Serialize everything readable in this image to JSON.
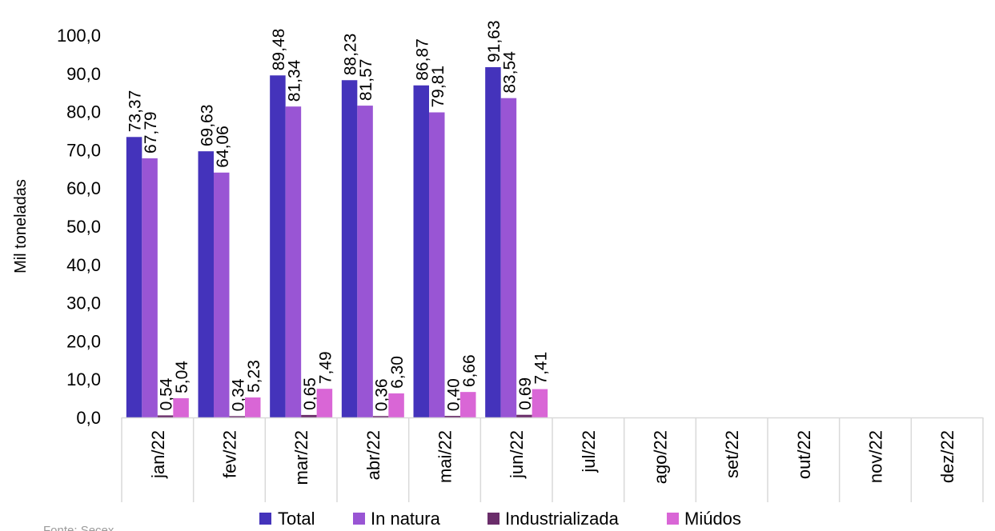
{
  "chart_data": {
    "type": "bar",
    "title": "",
    "xlabel": "",
    "ylabel": "Mil toneladas",
    "ylim": [
      0,
      100
    ],
    "yticks": [
      "0,0",
      "10,0",
      "20,0",
      "30,0",
      "40,0",
      "50,0",
      "60,0",
      "70,0",
      "80,0",
      "90,0",
      "100,0"
    ],
    "categories": [
      "jan/22",
      "fev/22",
      "mar/22",
      "abr/22",
      "mai/22",
      "jun/22",
      "jul/22",
      "ago/22",
      "set/22",
      "out/22",
      "nov/22",
      "dez/22"
    ],
    "series": [
      {
        "name": "Total",
        "color": "#4433BB",
        "values": [
          73.37,
          69.63,
          89.48,
          88.23,
          86.87,
          91.63,
          null,
          null,
          null,
          null,
          null,
          null
        ],
        "labels": [
          "73,37",
          "69,63",
          "89,48",
          "88,23",
          "86,87",
          "91,63",
          "",
          "",
          "",
          "",
          "",
          ""
        ]
      },
      {
        "name": "In natura",
        "color": "#9955D4",
        "values": [
          67.79,
          64.06,
          81.34,
          81.57,
          79.81,
          83.54,
          null,
          null,
          null,
          null,
          null,
          null
        ],
        "labels": [
          "67,79",
          "64,06",
          "81,34",
          "81,57",
          "79,81",
          "83,54",
          "",
          "",
          "",
          "",
          "",
          ""
        ]
      },
      {
        "name": "Industrializada",
        "color": "#6A2D6A",
        "values": [
          0.54,
          0.34,
          0.65,
          0.36,
          0.4,
          0.69,
          null,
          null,
          null,
          null,
          null,
          null
        ],
        "labels": [
          "0,54",
          "0,34",
          "0,65",
          "0,36",
          "0,40",
          "0,69",
          "",
          "",
          "",
          "",
          "",
          ""
        ]
      },
      {
        "name": "Miúdos",
        "color": "#D966D6",
        "values": [
          5.04,
          5.23,
          7.49,
          6.3,
          6.66,
          7.41,
          null,
          null,
          null,
          null,
          null,
          null
        ],
        "labels": [
          "5,04",
          "5,23",
          "7,49",
          "6,30",
          "6,66",
          "7,41",
          "",
          "",
          "",
          "",
          "",
          ""
        ]
      }
    ],
    "legend": "bottom",
    "grid": false
  },
  "source": "Fonte: Secex"
}
